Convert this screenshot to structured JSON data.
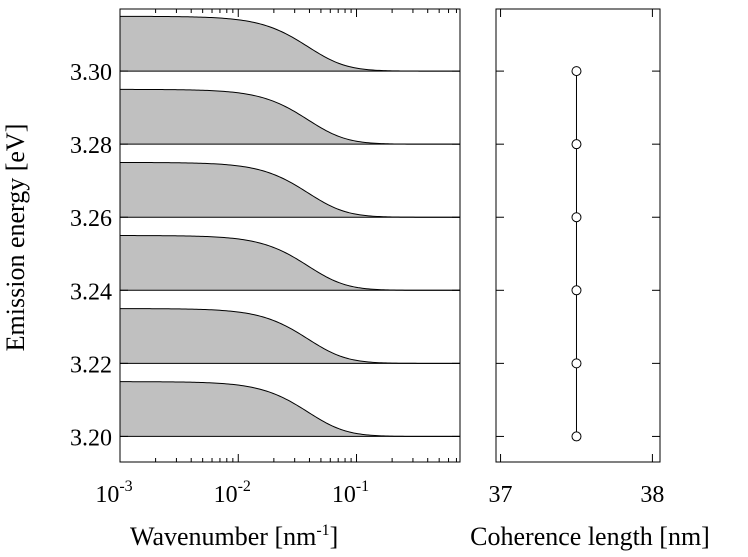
{
  "chart_data": [
    {
      "type": "area",
      "name": "spectral-profiles",
      "xlabel": "Wavenumber [nm",
      "xlabel_sup": "-1",
      "xlabel_end": "]",
      "ylabel": "Emission energy [eV]",
      "xscale": "log",
      "xlim": [
        0.001,
        0.75
      ],
      "ylim": [
        3.193,
        3.317
      ],
      "x_ticks": [
        0.001,
        0.01,
        0.1
      ],
      "x_tick_labels": [
        {
          "base": "10",
          "exp": "-3"
        },
        {
          "base": "10",
          "exp": "-2"
        },
        {
          "base": "10",
          "exp": "-1"
        }
      ],
      "y_ticks": [
        3.2,
        3.22,
        3.24,
        3.26,
        3.28,
        3.3
      ],
      "y_tick_labels": [
        "3.20",
        "3.22",
        "3.24",
        "3.26",
        "3.28",
        "3.30"
      ],
      "series": [
        {
          "baseline": 3.2,
          "plateau_height": 0.015,
          "halfwidth_wavenumber": 0.055,
          "fill": "#c0c0c0"
        },
        {
          "baseline": 3.22,
          "plateau_height": 0.015,
          "halfwidth_wavenumber": 0.055,
          "fill": "#c0c0c0"
        },
        {
          "baseline": 3.24,
          "plateau_height": 0.015,
          "halfwidth_wavenumber": 0.055,
          "fill": "#c0c0c0"
        },
        {
          "baseline": 3.26,
          "plateau_height": 0.015,
          "halfwidth_wavenumber": 0.055,
          "fill": "#c0c0c0"
        },
        {
          "baseline": 3.28,
          "plateau_height": 0.015,
          "halfwidth_wavenumber": 0.055,
          "fill": "#c0c0c0"
        },
        {
          "baseline": 3.3,
          "plateau_height": 0.015,
          "halfwidth_wavenumber": 0.055,
          "fill": "#c0c0c0"
        }
      ]
    },
    {
      "type": "line",
      "name": "coherence-length",
      "xlabel": "Coherence length [nm]",
      "xlim": [
        36.97,
        38.05
      ],
      "x_ticks": [
        37,
        38
      ],
      "x_tick_labels": [
        "37",
        "38"
      ],
      "ylim": [
        3.193,
        3.317
      ],
      "y_ticks": [
        3.2,
        3.22,
        3.24,
        3.26,
        3.28,
        3.3
      ],
      "x": [
        37.5,
        37.5,
        37.5,
        37.5,
        37.5,
        37.5
      ],
      "y": [
        3.2,
        3.22,
        3.24,
        3.26,
        3.28,
        3.3
      ],
      "marker": "open-circle"
    }
  ]
}
